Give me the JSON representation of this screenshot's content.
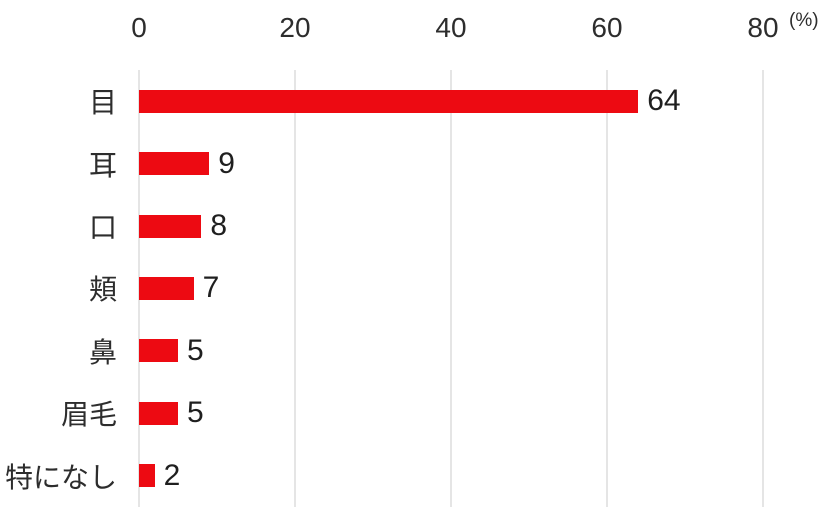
{
  "chart_data": {
    "type": "bar",
    "orientation": "horizontal",
    "categories": [
      "目",
      "耳",
      "口",
      "頬",
      "鼻",
      "眉毛",
      "特になし"
    ],
    "values": [
      64,
      9,
      8,
      7,
      5,
      5,
      2
    ],
    "value_labels": [
      "64",
      "9",
      "8",
      "7",
      "5",
      "5",
      "2"
    ],
    "x_ticks": [
      0,
      20,
      40,
      60,
      80
    ],
    "xlim": [
      0,
      80
    ],
    "unit_label": "(%)",
    "grid": "vertical-gridlines-only",
    "legend": "none",
    "title": "",
    "bar_color": "#ed0a12",
    "gridline_color": "#e5e5e5",
    "text_color": "#2d2d2d",
    "background_color": "#ffffff"
  }
}
